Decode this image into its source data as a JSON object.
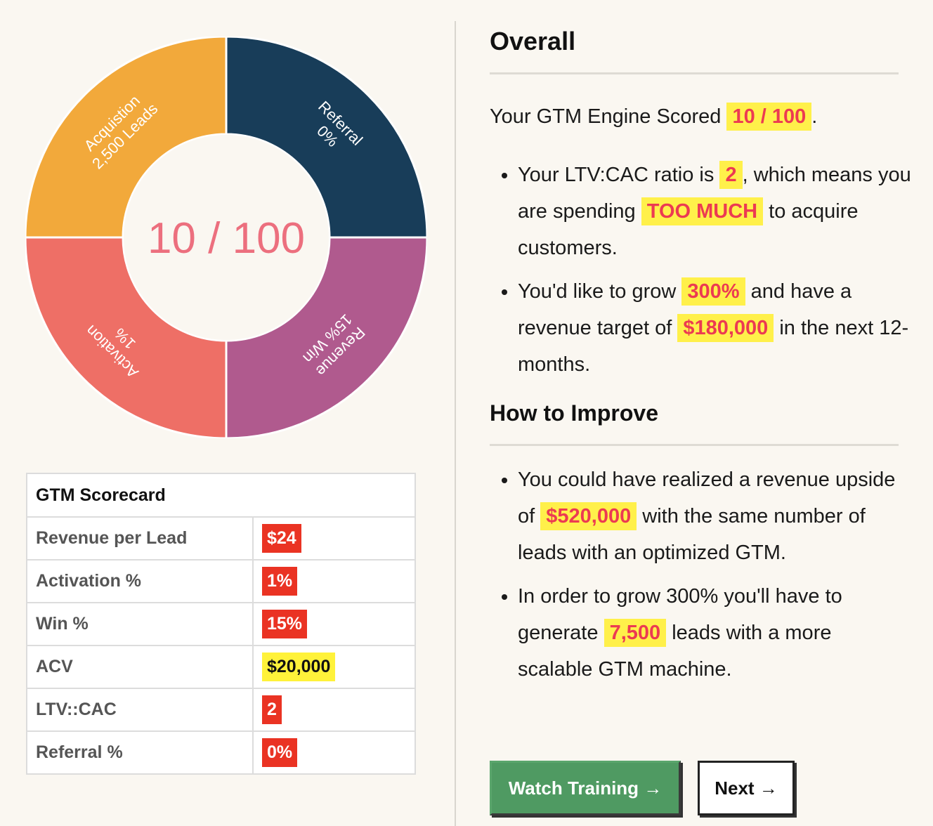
{
  "chart_data": {
    "type": "pie",
    "center_label": "10 / 100",
    "segments": [
      {
        "name": "Acquistion",
        "label": "2,500 Leads",
        "value": 25,
        "color": "#f2a93b"
      },
      {
        "name": "Referral",
        "label": "0%",
        "value": 25,
        "color": "#183d59"
      },
      {
        "name": "Revenue",
        "label": "15% Win",
        "value": 25,
        "color": "#b05a8e"
      },
      {
        "name": "Activation",
        "label": "1%",
        "value": 25,
        "color": "#ee6f66"
      }
    ]
  },
  "scorecard": {
    "title": "GTM Scorecard",
    "rows": [
      {
        "label": "Revenue per Lead",
        "value": "$24",
        "style": "red"
      },
      {
        "label": "Activation %",
        "value": "1%",
        "style": "red"
      },
      {
        "label": "Win %",
        "value": "15%",
        "style": "red"
      },
      {
        "label": "ACV",
        "value": "$20,000",
        "style": "yellow"
      },
      {
        "label": "LTV::CAC",
        "value": "2",
        "style": "red"
      },
      {
        "label": "Referral %",
        "value": "0%",
        "style": "red"
      }
    ]
  },
  "overall": {
    "heading": "Overall",
    "score_prefix": "Your GTM Engine Scored",
    "score": "10 / 100",
    "score_suffix": ".",
    "b1_a": "Your LTV:CAC ratio is",
    "b1_ratio": "2",
    "b1_b": ", which means you are spending",
    "b1_hl": "TOO MUCH",
    "b1_c": "to acquire customers.",
    "b2_a": "You'd like to grow",
    "b2_growth": "300%",
    "b2_b": "and have a revenue target of",
    "b2_target": "$180,000",
    "b2_c": "in the next 12-months."
  },
  "improve": {
    "heading": "How to Improve",
    "b1_a": "You could have realized a revenue upside of",
    "b1_upside": "$520,000",
    "b1_b": "with the same number of leads with an optimized GTM.",
    "b2_a": "In order to grow 300% you'll have to generate",
    "b2_leads": "7,500",
    "b2_b": "leads with a more scalable GTM machine."
  },
  "buttons": {
    "watch": "Watch Training →",
    "next": "Next →"
  }
}
